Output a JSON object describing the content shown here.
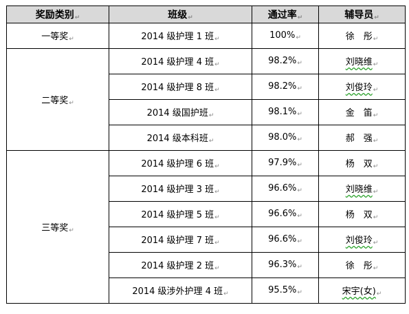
{
  "table": {
    "headers": [
      "奖励类别",
      "班级",
      "通过率",
      "辅导员"
    ],
    "para_mark": "↵",
    "groups": [
      {
        "category": "一等奖",
        "rows": [
          {
            "class": "2014 级护理 1 班",
            "rate": "100%",
            "counselor": "徐　彤"
          }
        ]
      },
      {
        "category": "二等奖",
        "rows": [
          {
            "class": "2014 级护理 4 班",
            "rate": "98.2%",
            "counselor": "刘晓维"
          },
          {
            "class": "2014 级护理 8 班",
            "rate": "98.2%",
            "counselor": "刘俊玲"
          },
          {
            "class": "2014 级国护班",
            "rate": "98.1%",
            "counselor": "金　笛"
          },
          {
            "class": "2014 级本科班",
            "rate": "98.0%",
            "counselor": "郝　强"
          }
        ]
      },
      {
        "category": "三等奖",
        "rows": [
          {
            "class": "2014 级护理 6 班",
            "rate": "97.9%",
            "counselor": "杨　双"
          },
          {
            "class": "2014 级护理 3 班",
            "rate": "96.6%",
            "counselor": "刘晓维"
          },
          {
            "class": "2014 级护理 5 班",
            "rate": "96.6%",
            "counselor": "杨　双"
          },
          {
            "class": "2014 级护理 7 班",
            "rate": "96.6%",
            "counselor": "刘俊玲"
          },
          {
            "class": "2014 级护理 2 班",
            "rate": "96.3%",
            "counselor": "徐　彤"
          },
          {
            "class": "2014 级涉外护理 4 班",
            "rate": "95.5%",
            "counselor": "宋宇(女)"
          }
        ]
      }
    ]
  }
}
